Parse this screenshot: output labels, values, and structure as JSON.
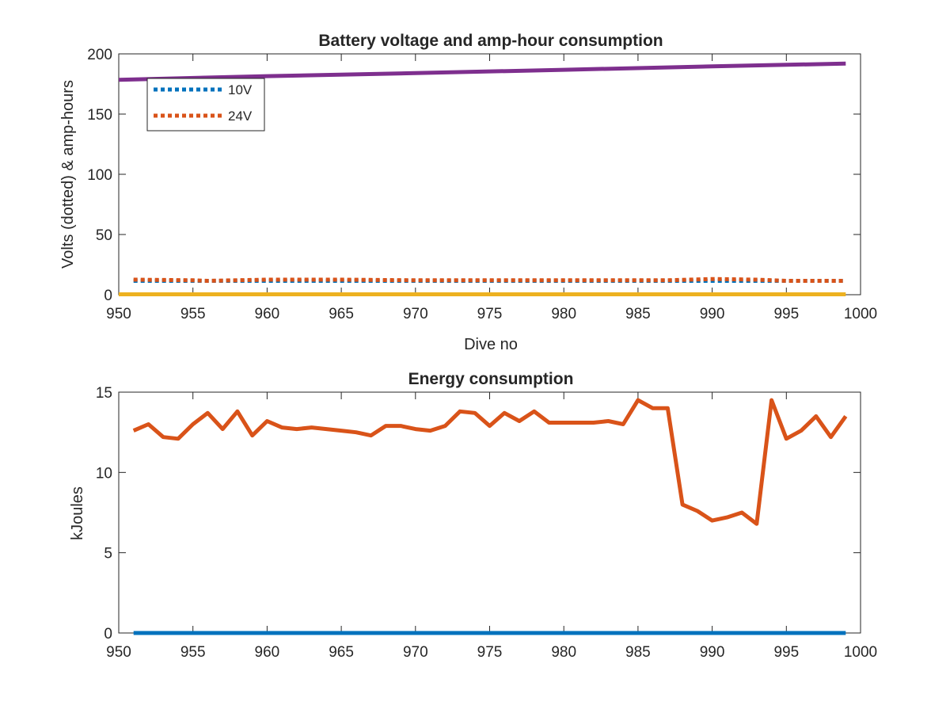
{
  "chart_data": [
    {
      "type": "line",
      "title": "Battery voltage and amp-hour consumption",
      "xlabel": "Dive no",
      "ylabel": "Volts (dotted) & amp-hours",
      "xlim": [
        950,
        1000
      ],
      "ylim": [
        0,
        200
      ],
      "xticks": [
        950,
        955,
        960,
        965,
        970,
        975,
        980,
        985,
        990,
        995,
        1000
      ],
      "yticks": [
        0,
        50,
        100,
        150,
        200
      ],
      "grid": false,
      "legend_placement": "top-left",
      "series": [
        {
          "name": "10V",
          "in_legend": true,
          "color": "#0072BD",
          "style": "dotted",
          "x": [
            951,
            999
          ],
          "y": [
            11.5,
            11.5
          ]
        },
        {
          "name": "24V",
          "in_legend": true,
          "color": "#D95319",
          "style": "dotted",
          "x": [
            951,
            955,
            956,
            960,
            965,
            970,
            975,
            980,
            985,
            987,
            990,
            993,
            995,
            999
          ],
          "y": [
            12.5,
            12.0,
            11.5,
            12.5,
            12.5,
            12.0,
            12.0,
            12.0,
            12.0,
            12.0,
            13.0,
            12.5,
            11.5,
            11.5
          ]
        },
        {
          "in_legend": false,
          "color": "#EDB120",
          "style": "solid",
          "x": [
            950,
            999
          ],
          "y": [
            0.3,
            0.3
          ]
        },
        {
          "in_legend": false,
          "color": "#7E2F8E",
          "style": "solid",
          "x": [
            950,
            960,
            970,
            980,
            990,
            999
          ],
          "y": [
            178.5,
            181.5,
            184.0,
            186.8,
            189.6,
            192.0
          ]
        }
      ]
    },
    {
      "type": "line",
      "title": "Energy consumption",
      "xlabel": "",
      "ylabel": "kJoules",
      "xlim": [
        950,
        1000
      ],
      "ylim": [
        0,
        15
      ],
      "xticks": [
        950,
        955,
        960,
        965,
        970,
        975,
        980,
        985,
        990,
        995,
        1000
      ],
      "yticks": [
        0,
        5,
        10,
        15
      ],
      "grid": false,
      "series": [
        {
          "color": "#0072BD",
          "style": "solid",
          "x": [
            951,
            999
          ],
          "y": [
            0,
            0
          ]
        },
        {
          "color": "#D95319",
          "style": "solid",
          "x": [
            951,
            952,
            953,
            954,
            955,
            956,
            957,
            958,
            959,
            960,
            961,
            962,
            963,
            964,
            965,
            966,
            967,
            968,
            969,
            970,
            971,
            972,
            973,
            974,
            975,
            976,
            977,
            978,
            979,
            980,
            981,
            982,
            983,
            984,
            985,
            986,
            987,
            988,
            989,
            990,
            991,
            992,
            993,
            994,
            995,
            996,
            997,
            998,
            999
          ],
          "y": [
            12.6,
            13.0,
            12.2,
            12.1,
            13.0,
            13.7,
            12.7,
            13.8,
            12.3,
            13.2,
            12.8,
            12.7,
            12.8,
            12.7,
            12.6,
            12.5,
            12.3,
            12.9,
            12.9,
            12.7,
            12.6,
            12.9,
            13.8,
            13.7,
            12.9,
            13.7,
            13.2,
            13.8,
            13.1,
            13.1,
            13.1,
            13.1,
            13.2,
            13.0,
            14.5,
            14.0,
            14.0,
            8.0,
            7.6,
            7.0,
            7.2,
            7.5,
            6.8,
            14.5,
            12.1,
            12.6,
            13.5,
            12.2,
            13.5
          ]
        }
      ]
    }
  ]
}
